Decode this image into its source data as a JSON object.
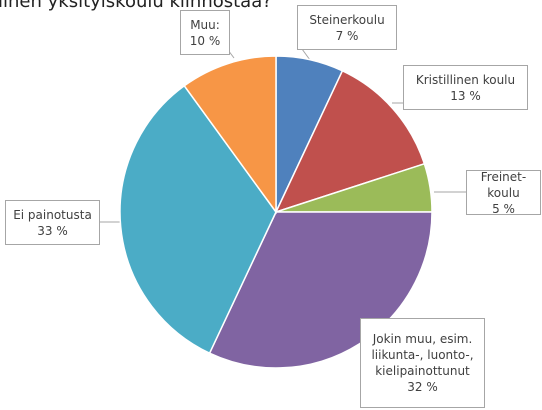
{
  "chart_data": {
    "type": "pie",
    "title": "linen yksityiskoulu kiinnostaa?",
    "categories": [
      "Steinerkoulu",
      "Kristillinen koulu",
      "Freinet-koulu",
      "Jokin muu, esim. liikunta-, luonto-, kielipainottunut",
      "Ei painotusta",
      "Muu:"
    ],
    "values": [
      7,
      13,
      5,
      32,
      33,
      10
    ],
    "value_labels": [
      "7 %",
      "13 %",
      "5 %",
      "32 %",
      "33 %",
      "10 %"
    ],
    "colors": [
      "#4f81bd",
      "#c0504d",
      "#9bbb59",
      "#8064a2",
      "#4bacc6",
      "#f79646"
    ]
  }
}
